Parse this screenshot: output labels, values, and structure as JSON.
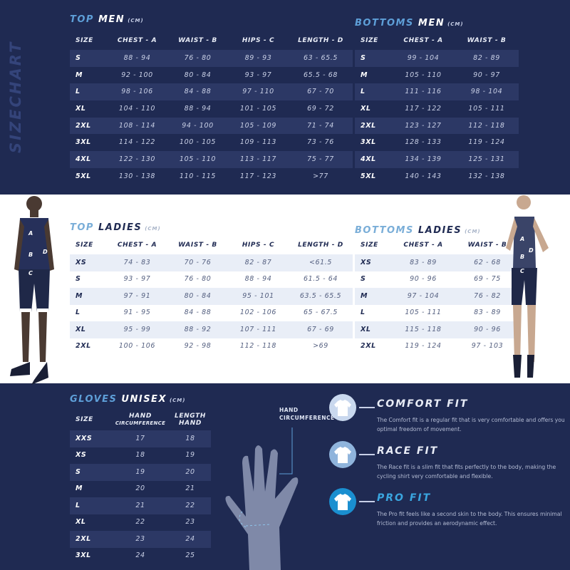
{
  "side_label": "SIZECHART",
  "unit": "(CM)",
  "tables": {
    "top_men": {
      "title_a": "TOP",
      "title_b": "MEN",
      "headers": [
        "SIZE",
        "CHEST - A",
        "WAIST - B",
        "HIPS - C",
        "LENGTH  - D"
      ],
      "rows": [
        [
          "S",
          "88 - 94",
          "76 - 80",
          "89 - 93",
          "63 - 65.5"
        ],
        [
          "M",
          "92 - 100",
          "80 - 84",
          "93 - 97",
          "65.5 - 68"
        ],
        [
          "L",
          "98 - 106",
          "84 - 88",
          "97 - 110",
          "67 - 70"
        ],
        [
          "XL",
          "104 - 110",
          "88 - 94",
          "101 - 105",
          "69 - 72"
        ],
        [
          "2XL",
          "108 - 114",
          "94 - 100",
          "105 - 109",
          "71 - 74"
        ],
        [
          "3XL",
          "114 - 122",
          "100 - 105",
          "109 - 113",
          "73 - 76"
        ],
        [
          "4XL",
          "122 - 130",
          "105 - 110",
          "113 - 117",
          "75 - 77"
        ],
        [
          "5XL",
          "130 - 138",
          "110 - 115",
          "117 - 123",
          ">77"
        ]
      ]
    },
    "bottoms_men": {
      "title_a": "BOTTOMS",
      "title_b": "MEN",
      "headers": [
        "SIZE",
        "CHEST - A",
        "WAIST - B"
      ],
      "rows": [
        [
          "S",
          "99 - 104",
          "82 - 89"
        ],
        [
          "M",
          "105 - 110",
          "90 - 97"
        ],
        [
          "L",
          "111 - 116",
          "98 - 104"
        ],
        [
          "XL",
          "117 - 122",
          "105 - 111"
        ],
        [
          "2XL",
          "123 - 127",
          "112 - 118"
        ],
        [
          "3XL",
          "128 - 133",
          "119 - 124"
        ],
        [
          "4XL",
          "134 - 139",
          "125 - 131"
        ],
        [
          "5XL",
          "140 - 143",
          "132 - 138"
        ]
      ]
    },
    "top_ladies": {
      "title_a": "TOP",
      "title_b": "LADIES",
      "headers": [
        "SIZE",
        "CHEST - A",
        "WAIST - B",
        "HIPS - C",
        "LENGTH  - D"
      ],
      "rows": [
        [
          "XS",
          "74 - 83",
          "70 - 76",
          "82 - 87",
          "<61.5"
        ],
        [
          "S",
          "93 - 97",
          "76 - 80",
          "88 - 94",
          "61.5 - 64"
        ],
        [
          "M",
          "97 - 91",
          "80 - 84",
          "95 - 101",
          "63.5 - 65.5"
        ],
        [
          "L",
          "91 - 95",
          "84 - 88",
          "102 - 106",
          "65 - 67.5"
        ],
        [
          "XL",
          "95 - 99",
          "88 - 92",
          "107 - 111",
          "67 - 69"
        ],
        [
          "2XL",
          "100 - 106",
          "92 - 98",
          "112 - 118",
          ">69"
        ]
      ]
    },
    "bottoms_ladies": {
      "title_a": "BOTTOMS",
      "title_b": "LADIES",
      "headers": [
        "SIZE",
        "CHEST - A",
        "WAIST - B"
      ],
      "rows": [
        [
          "XS",
          "83 - 89",
          "62 - 68"
        ],
        [
          "S",
          "90 - 96",
          "69 - 75"
        ],
        [
          "M",
          "97 - 104",
          "76 - 82"
        ],
        [
          "L",
          "105 - 111",
          "83 - 89"
        ],
        [
          "XL",
          "115 - 118",
          "90 - 96"
        ],
        [
          "2XL",
          "119 - 124",
          "97 - 103"
        ]
      ]
    },
    "gloves": {
      "title_a": "GLOVES",
      "title_b": "UNISEX",
      "headers": [
        "SIZE",
        "HAND|CIRCUMFERENCE",
        "LENGTH|HAND"
      ],
      "rows": [
        [
          "XXS",
          "17",
          "18"
        ],
        [
          "XS",
          "18",
          "19"
        ],
        [
          "S",
          "19",
          "20"
        ],
        [
          "M",
          "20",
          "21"
        ],
        [
          "L",
          "21",
          "22"
        ],
        [
          "XL",
          "22",
          "23"
        ],
        [
          "2XL",
          "23",
          "24"
        ],
        [
          "3XL",
          "24",
          "25"
        ]
      ]
    }
  },
  "hand_label_1": "HAND",
  "hand_label_2": "CIRCUMFERENCE",
  "body_markers": [
    "A",
    "B",
    "C",
    "D"
  ],
  "fits": [
    {
      "name": "COMFORT FIT",
      "desc": "The Comfort fit is a regular fit that is very comfortable and offers you optimal freedom of movement.",
      "color": "#c9d8ee",
      "name_color": "#e8ecf6"
    },
    {
      "name": "RACE FIT",
      "desc": "The Race fit is a slim fit that fits perfectly to the body, making the cycling shirt very comfortable and flexible.",
      "color": "#8fb4dc",
      "name_color": "#e8ecf6"
    },
    {
      "name": "PRO FIT",
      "desc": "The Pro fit feels like a second skin to the body. This ensures minimal friction and provides an aerodynamic effect.",
      "color": "#1a8fd0",
      "name_color": "#3aa6e0"
    }
  ]
}
